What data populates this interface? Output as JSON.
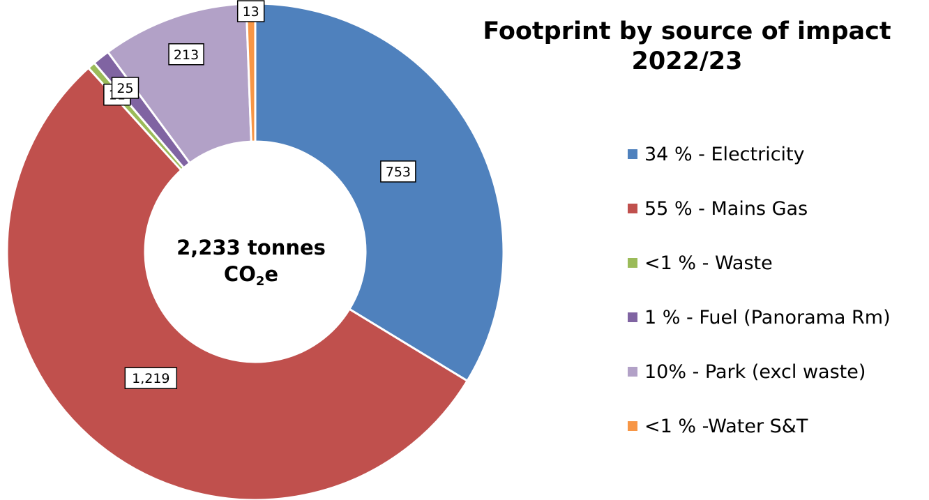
{
  "chart_data": {
    "type": "pie",
    "variant": "donut",
    "title_lines": [
      "Footprint by source of impact",
      "2022/23"
    ],
    "center_label": {
      "line1": "2,233 tonnes",
      "line2_main": "CO",
      "line2_sub": "2",
      "line2_tail": "e"
    },
    "total": 2233,
    "legend_position": "right",
    "slices": [
      {
        "value": 753,
        "data_label": "753",
        "legend": "34 % - Electricity",
        "color": "#4F81BD"
      },
      {
        "value": 1219,
        "data_label": "1,219",
        "legend": "55 % - Mains Gas",
        "color": "#C0504D"
      },
      {
        "value": 11,
        "data_label": "11",
        "legend": "<1 % - Waste",
        "color": "#9BBB59"
      },
      {
        "value": 25,
        "data_label": "25",
        "legend": "1 % - Fuel (Panorama Rm)",
        "color": "#8064A2"
      },
      {
        "value": 213,
        "data_label": "213",
        "legend": "10% - Park (excl waste)",
        "color": "#B2A1C7"
      },
      {
        "value": 13,
        "data_label": "13",
        "legend": "<1 % -Water S&T",
        "color": "#F79646"
      }
    ]
  }
}
